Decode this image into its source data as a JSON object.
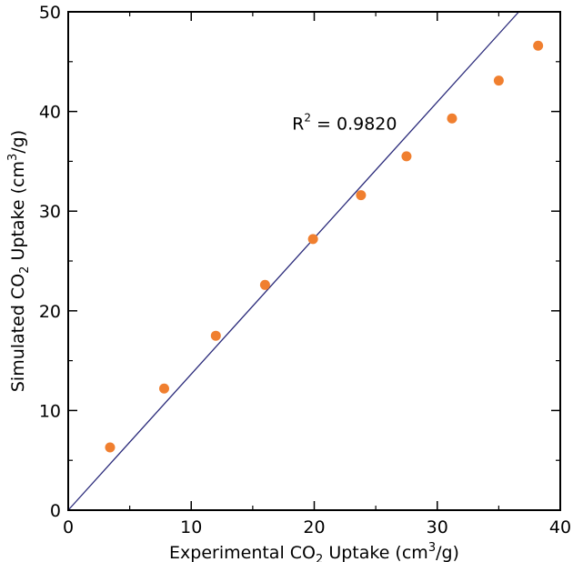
{
  "chart_data": {
    "type": "scatter",
    "xlabel": {
      "pre": "Experimental CO",
      "sub": "2",
      "mid": " Uptake (cm",
      "sup": "3",
      "post": "/g)"
    },
    "ylabel": {
      "pre": "Simulated CO",
      "sub": "2",
      "mid": " Uptake (cm",
      "sup": "3",
      "post": "/g)"
    },
    "xlim": [
      0,
      40
    ],
    "ylim": [
      0,
      50
    ],
    "x_ticks": [
      0,
      10,
      20,
      30,
      40
    ],
    "y_ticks": [
      0,
      10,
      20,
      30,
      40,
      50
    ],
    "x_tick_labels": [
      "0",
      "10",
      "20",
      "30",
      "40"
    ],
    "y_tick_labels": [
      "0",
      "10",
      "20",
      "30",
      "40",
      "50"
    ],
    "grid": false,
    "points": [
      {
        "x": 3.4,
        "y": 6.3
      },
      {
        "x": 7.8,
        "y": 12.2
      },
      {
        "x": 12.0,
        "y": 17.5
      },
      {
        "x": 16.0,
        "y": 22.6
      },
      {
        "x": 19.9,
        "y": 27.2
      },
      {
        "x": 23.8,
        "y": 31.6
      },
      {
        "x": 27.5,
        "y": 35.5
      },
      {
        "x": 31.2,
        "y": 39.3
      },
      {
        "x": 35.0,
        "y": 43.1
      },
      {
        "x": 38.2,
        "y": 46.6
      }
    ],
    "fit_line": {
      "x0": 0,
      "y0": 0,
      "slope": 1.365
    },
    "annotation": {
      "pre": "R",
      "sup": "2",
      "post": " = 0.9820",
      "x": 18.2,
      "y": 38.2
    },
    "colors": {
      "point": "#f07f2f",
      "line": "#2a2a7a",
      "axes": "#000000"
    }
  }
}
